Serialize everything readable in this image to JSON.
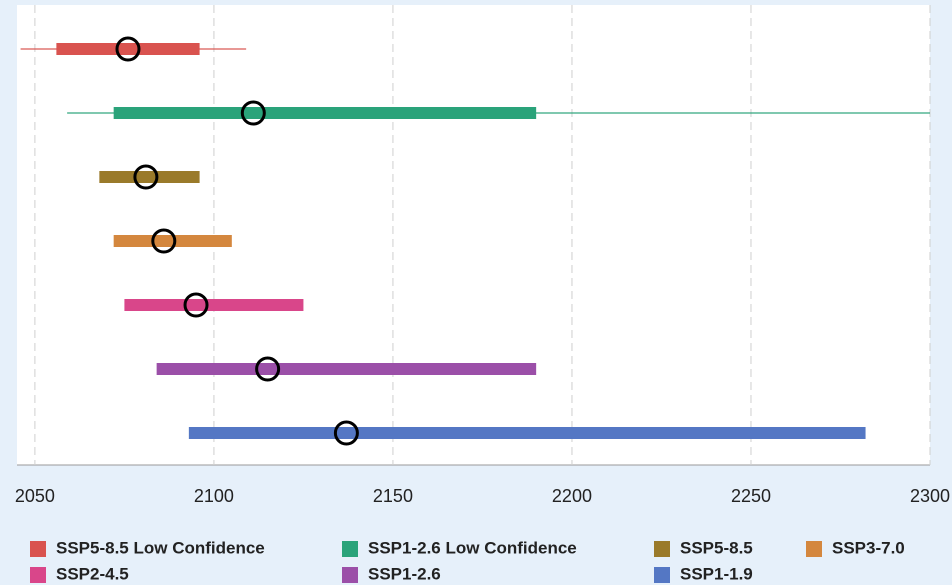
{
  "chart_data": {
    "type": "range",
    "xlim": [
      2045,
      2300
    ],
    "xticks": [
      2050,
      2100,
      2150,
      2200,
      2250,
      2300
    ],
    "grid": true,
    "series": [
      {
        "name": "SSP5-8.5 Low Confidence",
        "color": "#d9534f",
        "very_likely": [
          2046,
          2109
        ],
        "likely": [
          2056,
          2096
        ],
        "median": 2076
      },
      {
        "name": "SSP1-2.6 Low Confidence",
        "color": "#2aa37a",
        "very_likely": [
          2059,
          2300
        ],
        "likely": [
          2072,
          2190
        ],
        "median": 2111
      },
      {
        "name": "SSP5-8.5",
        "color": "#9a7a2a",
        "likely": [
          2068,
          2096
        ],
        "median": 2081
      },
      {
        "name": "SSP3-7.0",
        "color": "#d4873e",
        "likely": [
          2072,
          2105
        ],
        "median": 2086
      },
      {
        "name": "SSP2-4.5",
        "color": "#d9468a",
        "likely": [
          2075,
          2125
        ],
        "median": 2095
      },
      {
        "name": "SSP1-2.6",
        "color": "#9b4fa8",
        "likely": [
          2084,
          2190
        ],
        "median": 2115
      },
      {
        "name": "SSP1-1.9",
        "color": "#5477c4",
        "likely": [
          2093,
          2282
        ],
        "median": 2137
      }
    ]
  }
}
